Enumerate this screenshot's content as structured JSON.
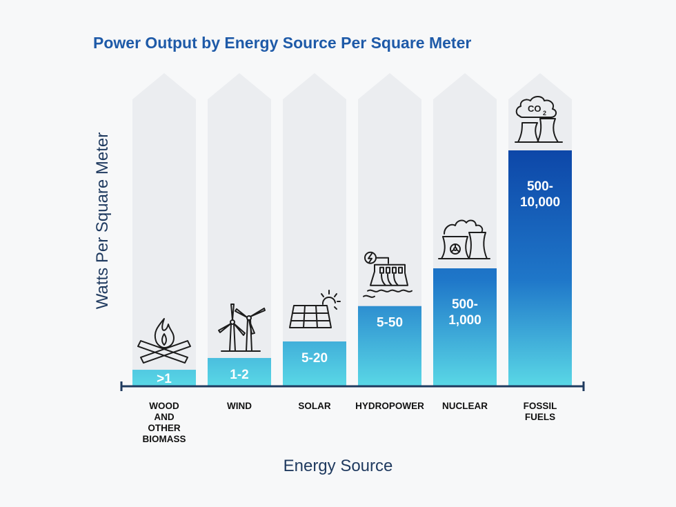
{
  "chart_data": {
    "type": "bar",
    "title": "Power Output by Energy Source Per Square Meter",
    "xlabel": "Energy Source",
    "ylabel": "Watts Per Square Meter",
    "categories": [
      [
        "WOOD",
        "AND",
        "OTHER",
        "BIOMASS"
      ],
      [
        "WIND"
      ],
      [
        "SOLAR"
      ],
      [
        "HYDROPOWER"
      ],
      [
        "NUCLEAR"
      ],
      [
        "FOSSIL",
        "FUELS"
      ]
    ],
    "value_labels": [
      [
        ">1"
      ],
      [
        "1-2"
      ],
      [
        "5-20"
      ],
      [
        "5-50"
      ],
      [
        "500-",
        "1,000"
      ],
      [
        "500-",
        "10,000"
      ]
    ],
    "relative_heights": [
      0.07,
      0.12,
      0.19,
      0.34,
      0.5,
      1.0
    ],
    "icons": [
      "campfire-icon",
      "wind-turbine-icon",
      "solar-panel-icon",
      "hydro-dam-icon",
      "nuclear-plant-icon",
      "co2-plant-icon"
    ],
    "colors": {
      "title": "#1e5aa8",
      "axis_label": "#1f3a5f",
      "bar_top": "#0d47a8",
      "bar_bottom": "#5ad8e6",
      "arrow_bg": "#ebedf0",
      "axis_line": "#1f3a5f",
      "category_text": "#111111",
      "value_text": "#ffffff"
    }
  }
}
